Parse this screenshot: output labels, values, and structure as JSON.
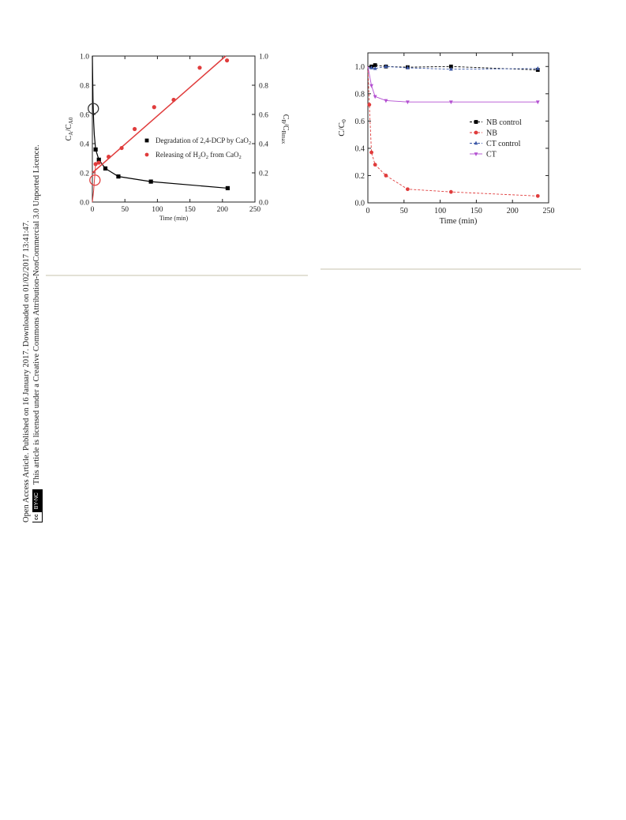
{
  "sidebar": {
    "line1": "Open Access Article. Published on 16 January 2017. Downloaded on 01/02/2017 13:41:47.",
    "line2": "This article is licensed under a Creative Commons Attribution-NonCommercial 3.0 Unported Licence.",
    "badge_cc": "cc",
    "badge_text": "BY-NC"
  },
  "chart_data": [
    {
      "type": "line",
      "x_label": "Time (min)",
      "y_label_left": "C_A/C_A0",
      "y_label_right": "C_B/C_Bmax",
      "xlim": [
        0,
        250
      ],
      "ylim_left": [
        0,
        1.0
      ],
      "ylim_right": [
        0,
        1.0
      ],
      "x_ticks": [
        "0",
        "50",
        "100",
        "150",
        "200",
        "250"
      ],
      "y_ticks_left": [
        "0.0",
        "0.2",
        "0.4",
        "0.6",
        "0.8",
        "1.0"
      ],
      "y_ticks_right": [
        "0.0",
        "0.2",
        "0.4",
        "0.6",
        "0.8",
        "1.0"
      ],
      "legend_position": "center-right",
      "series": [
        {
          "name": "Degradation of 2,4-DCP by CaO2",
          "legend_label": "Degradation of 2,4-DCP by CaO",
          "legend_sub": "2",
          "color": "#000000",
          "marker": "square",
          "points": [
            [
              5,
              0.36
            ],
            [
              10,
              0.29
            ],
            [
              20,
              0.23
            ],
            [
              40,
              0.175
            ],
            [
              90,
              0.14
            ],
            [
              208,
              0.095
            ]
          ],
          "curve": [
            [
              0,
              1.0
            ],
            [
              0.5,
              0.85
            ],
            [
              1,
              0.7
            ],
            [
              2,
              0.55
            ],
            [
              3,
              0.46
            ],
            [
              5,
              0.36
            ],
            [
              10,
              0.29
            ],
            [
              20,
              0.23
            ],
            [
              40,
              0.175
            ],
            [
              90,
              0.14
            ],
            [
              208,
              0.095
            ]
          ]
        },
        {
          "name": "Releasing of H2O2 from CaO2",
          "legend_parts": [
            "Releasing of H",
            "2",
            "O",
            "2",
            " from CaO",
            "2"
          ],
          "color": "#e03c3c",
          "marker": "circle",
          "points": [
            [
              5,
              0.26
            ],
            [
              10,
              0.27
            ],
            [
              25,
              0.31
            ],
            [
              45,
              0.37
            ],
            [
              65,
              0.5
            ],
            [
              95,
              0.65
            ],
            [
              125,
              0.7
            ],
            [
              165,
              0.92
            ],
            [
              207,
              0.97
            ]
          ],
          "fit_line": [
            [
              0,
              0.2
            ],
            [
              205,
              1.0
            ]
          ],
          "curve": [
            [
              0,
              0.0
            ],
            [
              2,
              0.08
            ],
            [
              4,
              0.2
            ],
            [
              5,
              0.26
            ]
          ]
        }
      ],
      "annotations": [
        {
          "type": "circle",
          "x": 1.5,
          "y": 0.64,
          "color": "#333333"
        },
        {
          "type": "circle",
          "x": 4,
          "y": 0.15,
          "color": "#e03c3c"
        }
      ]
    },
    {
      "type": "line",
      "x_label": "Time (min)",
      "y_label": "C/C0",
      "xlim": [
        0,
        250
      ],
      "ylim": [
        0,
        1.1
      ],
      "x_ticks": [
        "0",
        "50",
        "100",
        "150",
        "200",
        "250"
      ],
      "y_ticks": [
        "0.0",
        "0.2",
        "0.4",
        "0.6",
        "0.8",
        "1.0"
      ],
      "legend_position": "center-right",
      "series": [
        {
          "name": "NB control",
          "color": "#000000",
          "marker": "square",
          "line": "dash",
          "points": [
            [
              0,
              1.0
            ],
            [
              5,
              1.0
            ],
            [
              10,
              1.01
            ],
            [
              25,
              1.0
            ],
            [
              55,
              0.995
            ],
            [
              115,
              1.0
            ],
            [
              235,
              0.975
            ]
          ]
        },
        {
          "name": "NB",
          "color": "#e03c3c",
          "marker": "circle",
          "line": "dash",
          "points": [
            [
              0,
              1.0
            ],
            [
              2,
              0.72
            ],
            [
              5,
              0.37
            ],
            [
              10,
              0.28
            ],
            [
              25,
              0.2
            ],
            [
              55,
              0.1
            ],
            [
              115,
              0.08
            ],
            [
              235,
              0.05
            ]
          ]
        },
        {
          "name": "CT control",
          "color": "#3b57a6",
          "marker": "triangle-up",
          "line": "dash",
          "points": [
            [
              0,
              0.99
            ],
            [
              5,
              0.99
            ],
            [
              10,
              0.985
            ],
            [
              25,
              1.0
            ],
            [
              55,
              0.99
            ],
            [
              115,
              0.98
            ],
            [
              235,
              0.985
            ]
          ]
        },
        {
          "name": "CT",
          "color": "#b34fd1",
          "marker": "triangle-down",
          "line": "solid",
          "points": [
            [
              0,
              1.0
            ],
            [
              5,
              0.86
            ],
            [
              10,
              0.78
            ],
            [
              25,
              0.75
            ],
            [
              55,
              0.74
            ],
            [
              115,
              0.74
            ],
            [
              235,
              0.74
            ]
          ]
        }
      ]
    }
  ]
}
